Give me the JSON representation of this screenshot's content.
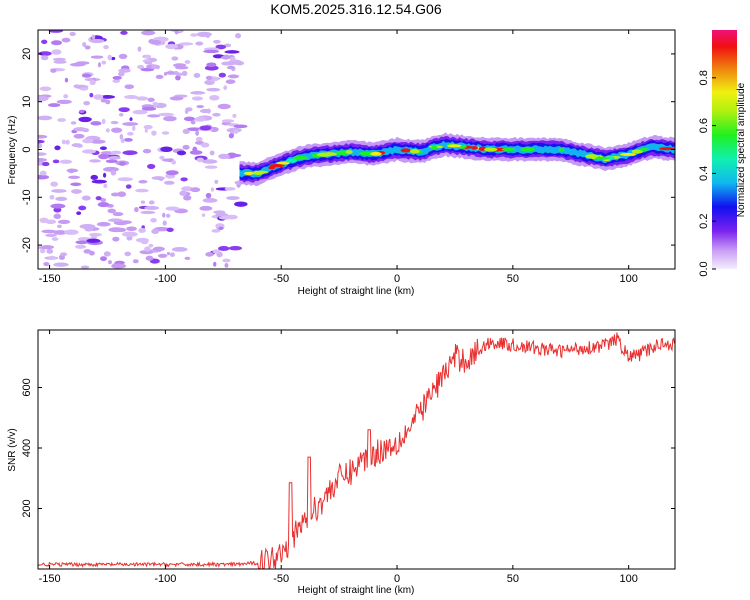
{
  "chart_data": [
    {
      "type": "heatmap",
      "title": "KOM5.2025.316.12.54.G06",
      "xlabel": "Height of straight line (km)",
      "ylabel": "Frequency (Hz)",
      "xlim": [
        -155,
        120
      ],
      "ylim": [
        -25,
        25
      ],
      "x_ticks": [
        -150,
        -100,
        -50,
        0,
        50,
        100
      ],
      "y_ticks": [
        -20,
        -10,
        0,
        10,
        20
      ],
      "noise_region": {
        "x_range": [
          -155,
          -67
        ],
        "y_range": [
          -25,
          25
        ]
      },
      "ridge": {
        "x": [
          -68,
          -60,
          -50,
          -40,
          -30,
          -20,
          -10,
          0,
          10,
          20,
          30,
          40,
          50,
          60,
          70,
          80,
          90,
          100,
          110,
          120
        ],
        "frequency": [
          -5,
          -5,
          -3,
          -1.5,
          -1,
          -0.5,
          -1,
          0,
          -0.5,
          1,
          0.5,
          0,
          0,
          0,
          0,
          -1,
          -2,
          -1,
          0.5,
          0
        ]
      },
      "colorbar": {
        "label": "Normalized spectral amplitude",
        "range": [
          0,
          1
        ],
        "ticks": [
          "0.0",
          "0.2",
          "0.4",
          "0.6",
          "0.8"
        ]
      }
    },
    {
      "type": "line",
      "xlabel": "Height of straight line (km)",
      "ylabel": "SNR (v/v)",
      "xlim": [
        -155,
        120
      ],
      "ylim": [
        0,
        790
      ],
      "x_ticks": [
        -150,
        -100,
        -50,
        0,
        50,
        100
      ],
      "y_ticks": [
        200,
        400,
        600
      ],
      "series": [
        {
          "name": "SNR",
          "color": "#e83030",
          "x": [
            -155,
            -70,
            -60,
            -55,
            -50,
            -45,
            -40,
            -35,
            -30,
            -25,
            -20,
            -15,
            -10,
            -5,
            0,
            5,
            10,
            15,
            20,
            25,
            30,
            35,
            40,
            50,
            60,
            70,
            80,
            90,
            95,
            100,
            105,
            110,
            115,
            120
          ],
          "y": [
            15,
            15,
            20,
            30,
            60,
            100,
            160,
            200,
            250,
            300,
            320,
            360,
            380,
            400,
            420,
            460,
            520,
            580,
            640,
            700,
            690,
            720,
            750,
            740,
            730,
            720,
            730,
            740,
            760,
            700,
            710,
            730,
            750,
            740
          ]
        }
      ],
      "spikes": [
        {
          "x": -46,
          "y": 285
        },
        {
          "x": -38,
          "y": 370
        },
        {
          "x": -12,
          "y": 460
        }
      ]
    }
  ]
}
